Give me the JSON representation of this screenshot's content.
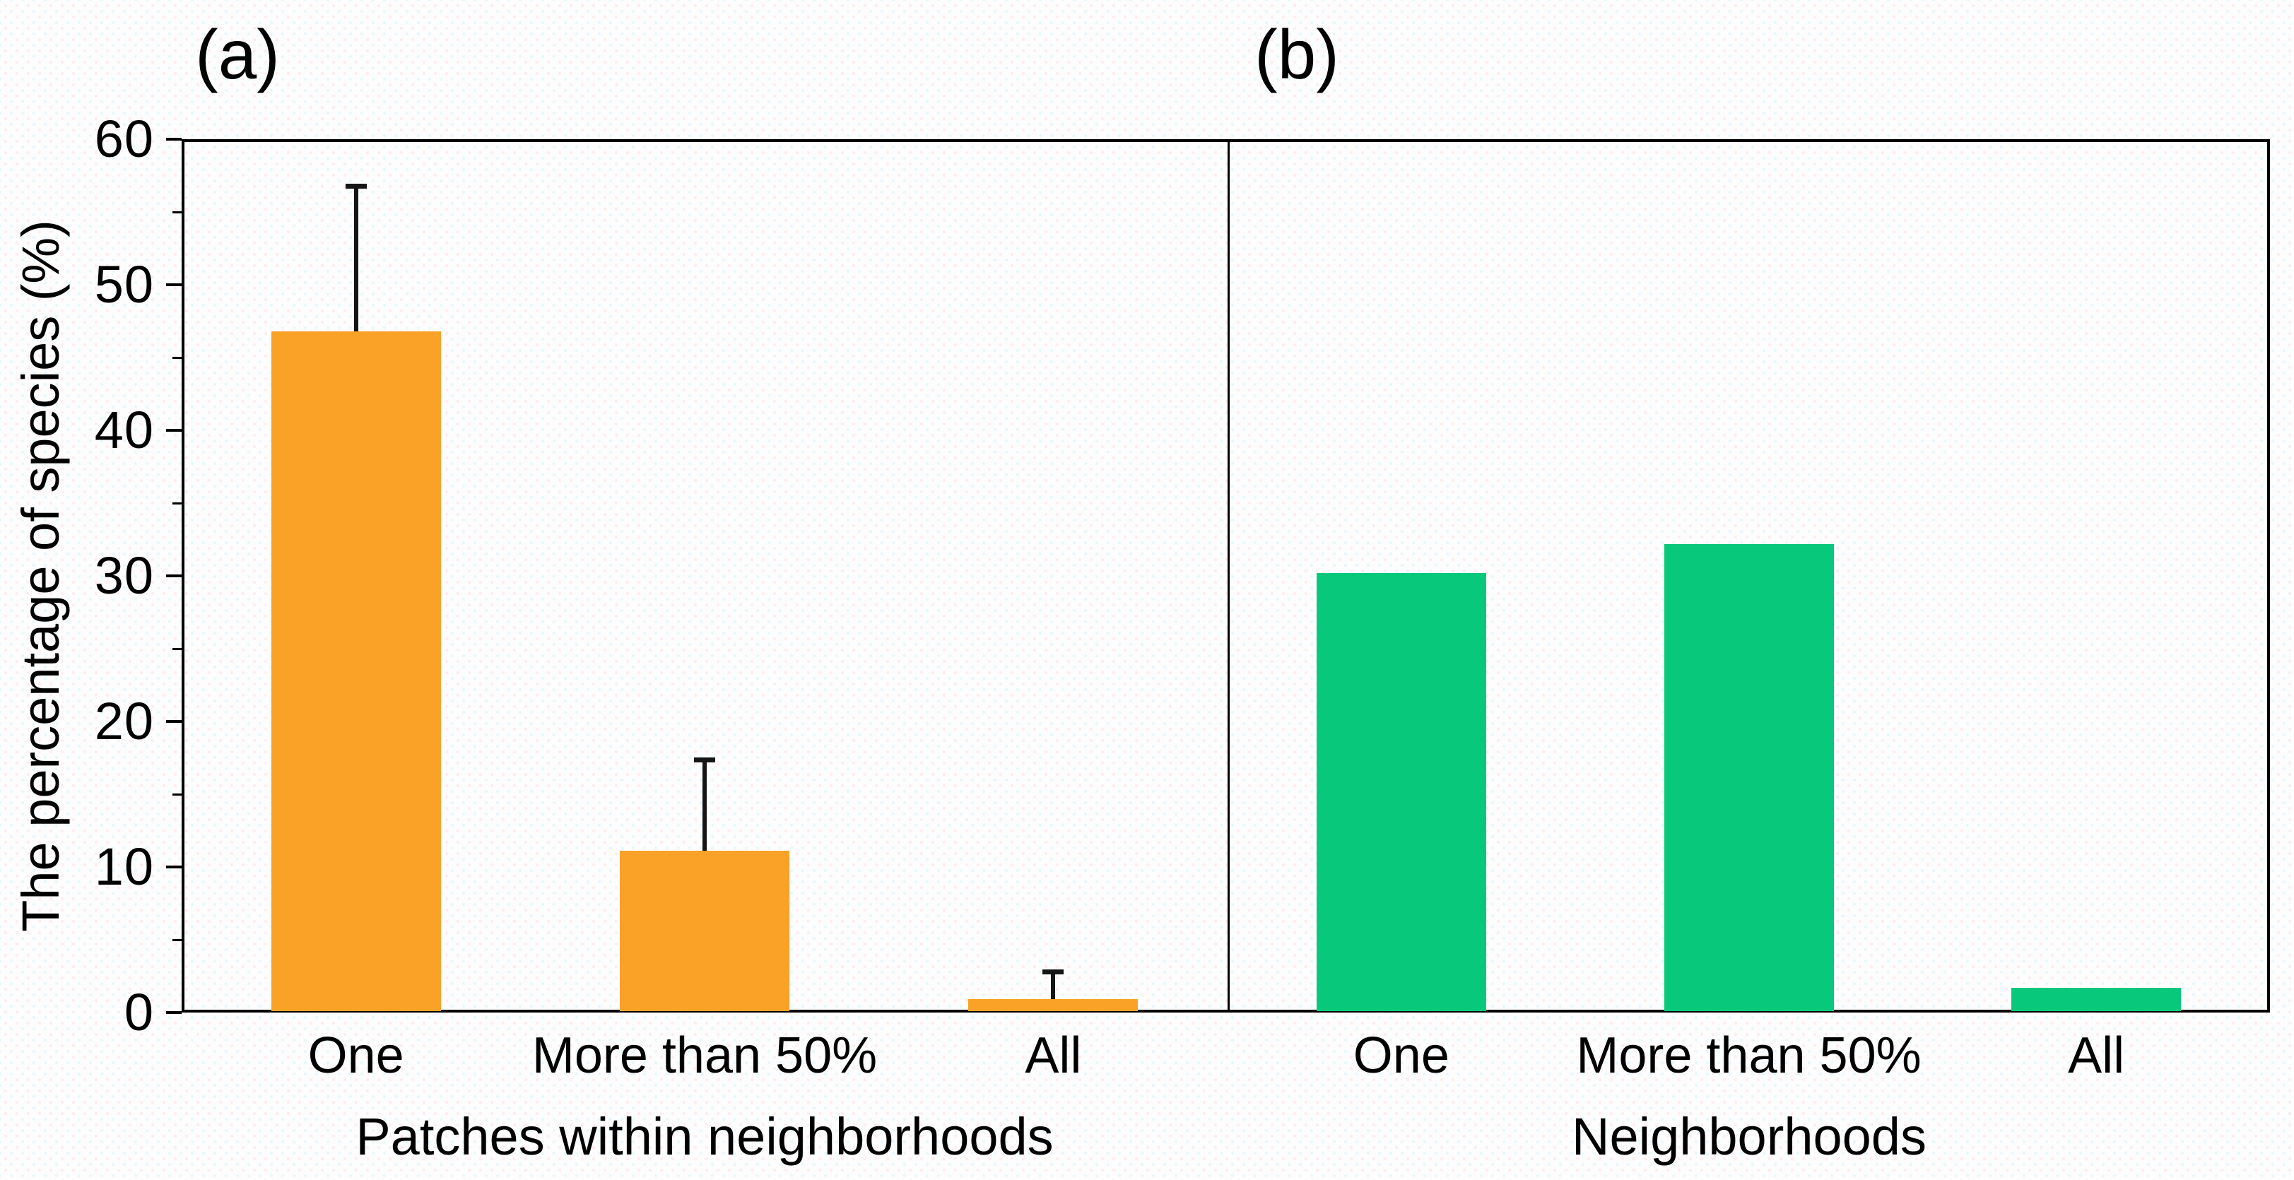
{
  "figure": {
    "panel_a_label": "(a)",
    "panel_b_label": "(b)",
    "y_axis_title": "The percentage of species (%)",
    "colors": {
      "panel_a_bar": "#F9A227",
      "panel_b_bar": "#07C87B",
      "axis": "#000000",
      "error_bar": "#151515",
      "background": "#FDFDFD"
    }
  },
  "chart_data": [
    {
      "type": "bar",
      "panel": "(a)",
      "categories": [
        "One",
        "More than 50%",
        "All"
      ],
      "values": [
        46.8,
        11.1,
        0.9
      ],
      "errors_plus": [
        9.9,
        6.2,
        1.8
      ],
      "xlabel": "Patches within neighborhoods",
      "ylabel": "The percentage of species (%)",
      "ylim": [
        0,
        60
      ],
      "y_ticks": [
        0,
        10,
        20,
        30,
        40,
        50,
        60
      ],
      "bar_color": "#F9A227",
      "error_bars": true,
      "grid": false,
      "legend": null
    },
    {
      "type": "bar",
      "panel": "(b)",
      "categories": [
        "One",
        "More than 50%",
        "All"
      ],
      "values": [
        30.2,
        32.2,
        1.7
      ],
      "errors_plus": [
        0,
        0,
        0
      ],
      "xlabel": "Neighborhoods",
      "ylabel": "The percentage of species (%)",
      "ylim": [
        0,
        60
      ],
      "y_ticks": [
        0,
        10,
        20,
        30,
        40,
        50,
        60
      ],
      "bar_color": "#07C87B",
      "error_bars": false,
      "grid": false,
      "legend": null
    }
  ]
}
